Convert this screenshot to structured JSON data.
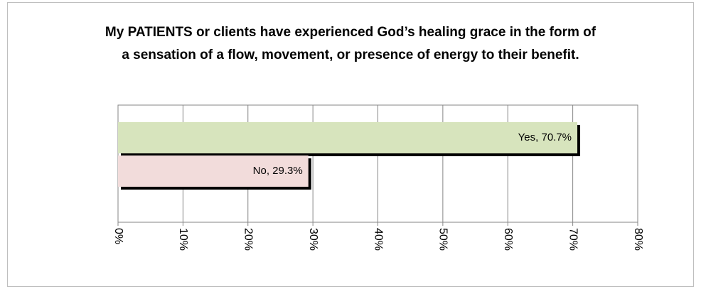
{
  "chart_data": {
    "type": "bar",
    "orientation": "horizontal",
    "title": "My PATIENTS or clients have experienced God’s healing grace in the form of a sensation of a flow, movement, or presence of energy to their benefit.",
    "values": [
      70.7,
      29.3
    ],
    "value_labels": [
      "Yes, 70.7%",
      "No, 29.3%"
    ],
    "colors": [
      "#d7e4bd",
      "#f2dcdb"
    ],
    "xlim": [
      0,
      80
    ],
    "xticks": [
      {
        "value": 0,
        "label": "0%"
      },
      {
        "value": 10,
        "label": "10%"
      },
      {
        "value": 20,
        "label": "20%"
      },
      {
        "value": 30,
        "label": "30%"
      },
      {
        "value": 40,
        "label": "40%"
      },
      {
        "value": 50,
        "label": "50%"
      },
      {
        "value": 60,
        "label": "60%"
      },
      {
        "value": 70,
        "label": "70%"
      },
      {
        "value": 80,
        "label": "80%"
      }
    ],
    "grid": true
  }
}
